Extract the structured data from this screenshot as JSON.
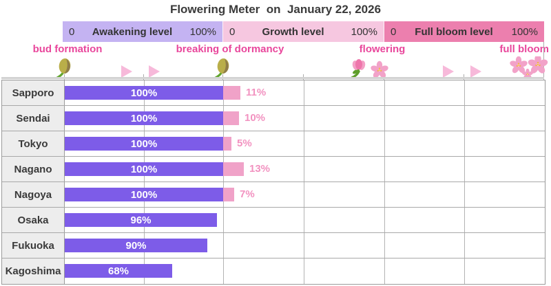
{
  "title": "Flowering Meter  on  January 22, 2026",
  "scale_bar": {
    "sections": [
      {
        "name": "Awakening level",
        "min": "0",
        "max": "100%",
        "color": "#c4b3f2"
      },
      {
        "name": "Growth level",
        "min": "0",
        "max": "100%",
        "color": "#f6c7e0"
      },
      {
        "name": "Full bloom level",
        "min": "0",
        "max": "100%",
        "color": "#ec7fae"
      }
    ]
  },
  "stages": [
    {
      "label": "bud formation",
      "icon": "bud-icon"
    },
    {
      "label": "breaking of dormancy",
      "icon": "bud-icon"
    },
    {
      "label": "flowering",
      "icon": "tulip-and-blossom-icon"
    },
    {
      "label": "full bloom",
      "icon": "blossom-cluster-icon"
    }
  ],
  "chart_data": {
    "type": "bar",
    "orientation": "horizontal",
    "title": "Flowering Meter  on  January 22, 2026",
    "categories": [
      "Sapporo",
      "Sendai",
      "Tokyo",
      "Nagano",
      "Nagoya",
      "Osaka",
      "Fukuoka",
      "Kagoshima"
    ],
    "series": [
      {
        "name": "Awakening level",
        "unit": "%",
        "color": "#7d5ce8",
        "values": [
          100,
          100,
          100,
          100,
          100,
          96,
          90,
          68
        ]
      },
      {
        "name": "Growth level",
        "unit": "%",
        "color": "#f0a2c8",
        "values": [
          11,
          10,
          5,
          13,
          7,
          null,
          null,
          null
        ]
      }
    ],
    "value_labels": true,
    "axis_segments": [
      {
        "label": "Awakening level",
        "range": [
          0,
          100
        ]
      },
      {
        "label": "Growth level",
        "range": [
          0,
          100
        ]
      },
      {
        "label": "Full bloom level",
        "range": [
          0,
          100
        ]
      }
    ],
    "grid": true,
    "legend_position": "top"
  },
  "colors": {
    "awakening_bar": "#7d5ce8",
    "growth_bar": "#f0a2c8",
    "growth_value_text": "#f292c0",
    "stage_label_text": "#e9479c",
    "title_text": "#3a3a3a",
    "city_cell_bg": "#ededed",
    "grid_line": "#a8a8a8"
  }
}
